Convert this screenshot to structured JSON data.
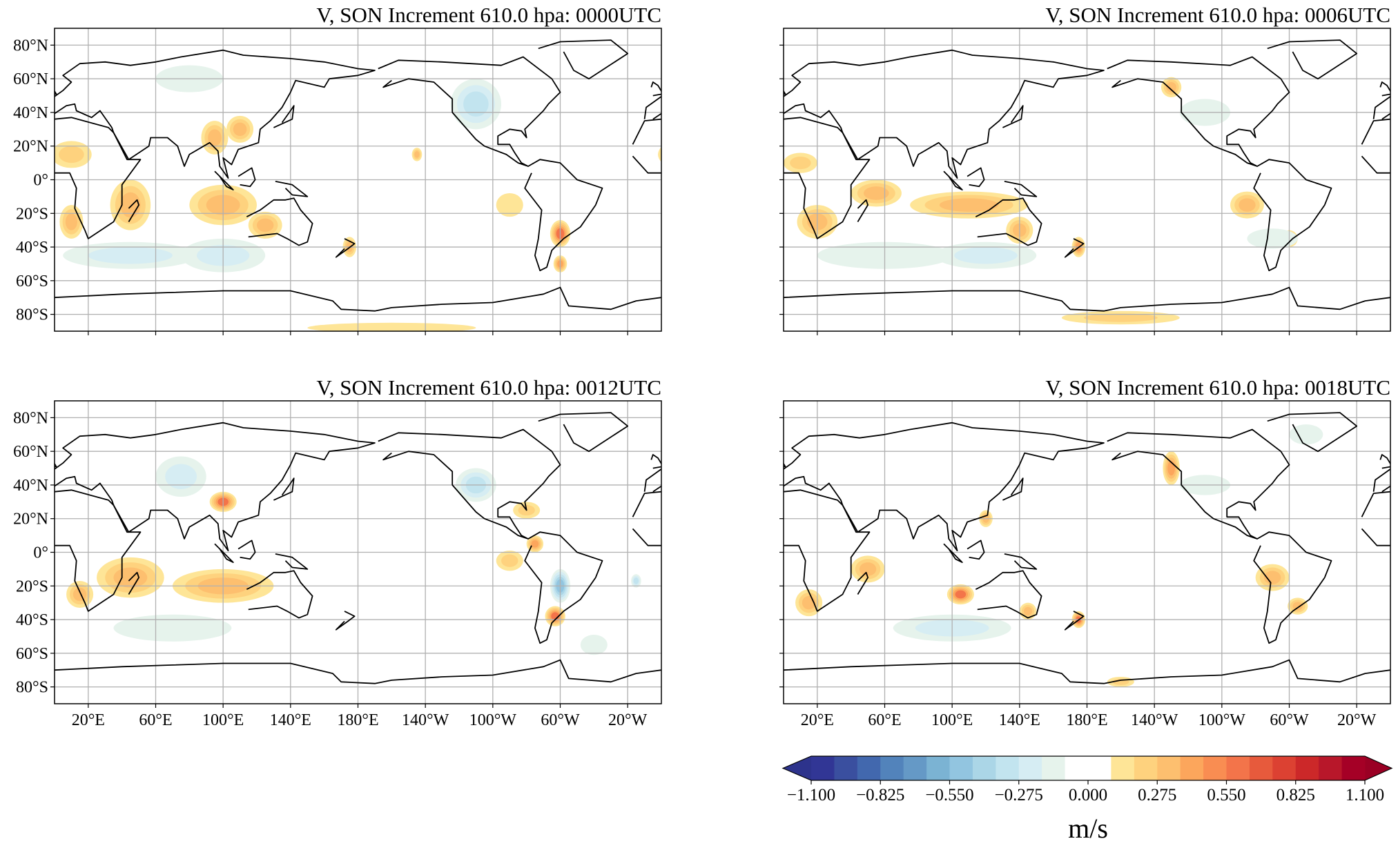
{
  "colors": {
    "below": "#2d338c",
    "above": "#9a0024",
    "levels": [
      "#313695",
      "#3a4f9f",
      "#4268ae",
      "#5283bb",
      "#6599c6",
      "#7bb3d3",
      "#92c5e0",
      "#abd6e7",
      "#c2e4ef",
      "#d6edf3",
      "#e6f3ec",
      "#ffffff",
      "#ffffff",
      "#fee597",
      "#fed27e",
      "#fdbf6f",
      "#fca65c",
      "#f98d52",
      "#f3744a",
      "#e75a3c",
      "#dc4132",
      "#cc2829",
      "#b8172a",
      "#a50026"
    ],
    "coast": "#000000",
    "grid": "#b0b0b0"
  },
  "colorbar": {
    "range": [
      -1.1,
      1.1
    ],
    "ticks": [
      "−1.100",
      "−0.825",
      "−0.550",
      "−0.275",
      "0.000",
      "0.275",
      "0.550",
      "0.825",
      "1.100"
    ],
    "tick_values": [
      -1.1,
      -0.825,
      -0.55,
      -0.275,
      0,
      0.275,
      0.55,
      0.825,
      1.1
    ],
    "label": "m/s",
    "extend": "both"
  },
  "axes": {
    "lat_ticks": [
      80,
      60,
      40,
      20,
      0,
      -20,
      -40,
      -60,
      -80
    ],
    "lat_labels": [
      "80°N",
      "60°N",
      "40°N",
      "20°N",
      "0°",
      "20°S",
      "40°S",
      "60°S",
      "80°S"
    ],
    "lon_ticks": [
      20,
      60,
      100,
      140,
      180,
      220,
      260,
      300,
      340
    ],
    "lon_labels": [
      "20°E",
      "60°E",
      "100°E",
      "140°E",
      "180°E",
      "140°W",
      "100°W",
      "60°W",
      "20°W"
    ],
    "lon_range": [
      0,
      360
    ],
    "lat_range": [
      -90,
      90
    ],
    "grid": true
  },
  "chart_data": [
    {
      "type": "heatmap",
      "title": "V, SON Increment 610.0 hpa: 0000UTC",
      "features": [
        [
          10,
          15,
          12,
          8,
          0.2
        ],
        [
          45,
          -15,
          12,
          15,
          0.25
        ],
        [
          95,
          25,
          8,
          10,
          0.35
        ],
        [
          110,
          30,
          8,
          8,
          0.3
        ],
        [
          100,
          -15,
          20,
          12,
          0.3
        ],
        [
          125,
          -27,
          10,
          8,
          0.35
        ],
        [
          45,
          -45,
          40,
          8,
          -0.2
        ],
        [
          100,
          -45,
          25,
          10,
          -0.2
        ],
        [
          250,
          45,
          15,
          15,
          -0.35
        ],
        [
          300,
          -32,
          6,
          8,
          0.45
        ],
        [
          300,
          -50,
          4,
          5,
          0.4
        ],
        [
          270,
          -15,
          8,
          7,
          0.15
        ],
        [
          10,
          -25,
          7,
          10,
          0.3
        ],
        [
          200,
          -88,
          50,
          3,
          0.15
        ],
        [
          80,
          60,
          20,
          8,
          -0.15
        ],
        [
          175,
          -40,
          4,
          6,
          0.35
        ],
        [
          215,
          15,
          3,
          4,
          0.3
        ]
      ]
    },
    {
      "type": "heatmap",
      "title": "V, SON Increment 610.0 hpa: 0006UTC",
      "features": [
        [
          20,
          -25,
          12,
          10,
          0.3
        ],
        [
          55,
          -8,
          15,
          8,
          0.3
        ],
        [
          110,
          -15,
          35,
          8,
          0.3
        ],
        [
          140,
          -30,
          8,
          8,
          0.3
        ],
        [
          175,
          -40,
          4,
          6,
          0.4
        ],
        [
          60,
          -45,
          40,
          8,
          -0.15
        ],
        [
          120,
          -45,
          30,
          8,
          -0.2
        ],
        [
          250,
          40,
          15,
          8,
          -0.15
        ],
        [
          275,
          -15,
          10,
          8,
          0.25
        ],
        [
          200,
          -82,
          35,
          4,
          0.2
        ],
        [
          300,
          -35,
          5,
          5,
          0.25
        ],
        [
          10,
          10,
          10,
          6,
          0.2
        ],
        [
          230,
          55,
          6,
          6,
          0.3
        ],
        [
          290,
          -35,
          15,
          6,
          -0.1
        ]
      ]
    },
    {
      "type": "heatmap",
      "title": "V, SON Increment 610.0 hpa: 0012UTC",
      "features": [
        [
          100,
          30,
          8,
          6,
          0.5
        ],
        [
          75,
          45,
          15,
          12,
          -0.2
        ],
        [
          45,
          -15,
          20,
          12,
          0.25
        ],
        [
          100,
          -20,
          30,
          10,
          0.3
        ],
        [
          15,
          -25,
          8,
          8,
          0.3
        ],
        [
          300,
          -20,
          6,
          10,
          -0.45
        ],
        [
          297,
          -38,
          6,
          6,
          0.5
        ],
        [
          285,
          5,
          5,
          5,
          0.4
        ],
        [
          250,
          40,
          12,
          10,
          -0.3
        ],
        [
          270,
          -5,
          8,
          6,
          0.2
        ],
        [
          70,
          -45,
          35,
          8,
          -0.15
        ],
        [
          345,
          -17,
          3,
          4,
          -0.3
        ],
        [
          280,
          25,
          8,
          5,
          0.2
        ],
        [
          320,
          -55,
          8,
          6,
          -0.15
        ]
      ]
    },
    {
      "type": "heatmap",
      "title": "V, SON Increment 610.0 hpa: 0018UTC",
      "features": [
        [
          105,
          -25,
          8,
          6,
          0.45
        ],
        [
          100,
          -45,
          35,
          8,
          -0.2
        ],
        [
          175,
          -40,
          4,
          5,
          0.5
        ],
        [
          230,
          50,
          5,
          10,
          0.4
        ],
        [
          290,
          -15,
          10,
          8,
          0.25
        ],
        [
          50,
          -10,
          10,
          8,
          0.3
        ],
        [
          15,
          -30,
          8,
          8,
          0.25
        ],
        [
          250,
          40,
          15,
          6,
          -0.12
        ],
        [
          305,
          -32,
          6,
          5,
          0.25
        ],
        [
          145,
          -35,
          5,
          5,
          0.3
        ],
        [
          200,
          -77,
          8,
          3,
          0.2
        ],
        [
          120,
          20,
          4,
          5,
          0.3
        ],
        [
          310,
          70,
          10,
          6,
          -0.1
        ]
      ]
    }
  ]
}
